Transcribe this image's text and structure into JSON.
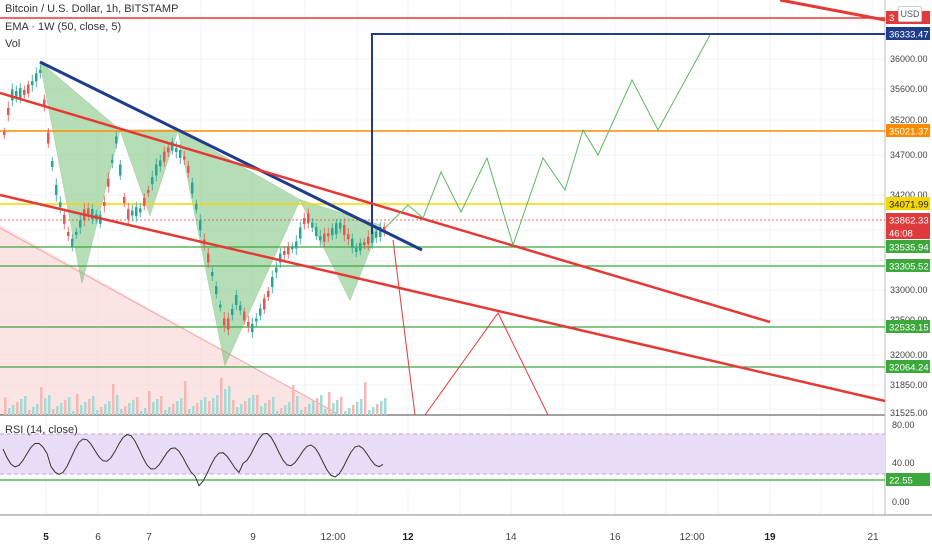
{
  "header": {
    "title": "Bitcoin / U.S. Dollar, 1h, BITSTAMP",
    "ema": "EMA · 1W (50, close, 5)",
    "vol": "Vol",
    "rsi": "RSI (14, close)",
    "currency": "USD"
  },
  "chart_data": {
    "type": "candlestick",
    "price_axis": {
      "ticks": [
        "36000.00",
        "35600.00",
        "35200.00",
        "34700.00",
        "34200.00",
        "33000.00",
        "32500.00",
        "32000.00",
        "31850.00",
        "31525.00"
      ],
      "range": [
        31525,
        36500
      ]
    },
    "rsi_axis": {
      "ticks": [
        "80.00",
        "40.00",
        "0.00"
      ],
      "range": [
        0,
        80
      ]
    },
    "x_ticks": [
      {
        "label": "5",
        "bold": true
      },
      {
        "label": "6",
        "bold": false
      },
      {
        "label": "7",
        "bold": false
      },
      {
        "label": "9",
        "bold": false
      },
      {
        "label": "12:00",
        "bold": false
      },
      {
        "label": "12",
        "bold": true
      },
      {
        "label": "14",
        "bold": false
      },
      {
        "label": "16",
        "bold": false
      },
      {
        "label": "12:00",
        "bold": false
      },
      {
        "label": "19",
        "bold": true
      },
      {
        "label": "21",
        "bold": false
      }
    ],
    "horizontal_levels": [
      {
        "label": "36333.47",
        "color": "#1f3c8a",
        "style": "badge"
      },
      {
        "label": "35021.37",
        "color": "#ff8c00",
        "style": "badge"
      },
      {
        "label": "34071.99",
        "color": "#f5d800",
        "style": "badge"
      },
      {
        "label": "33862.33",
        "color": "#e03b3b",
        "style": "badge"
      },
      {
        "label": "46:08",
        "color": "#e03b3b",
        "style": "badge"
      },
      {
        "label": "33535.94",
        "color": "#3ca83c",
        "style": "badge"
      },
      {
        "label": "33305.52",
        "color": "#3ca83c",
        "style": "badge"
      },
      {
        "label": "32533.15",
        "color": "#3ca83c",
        "style": "badge"
      },
      {
        "label": "32064.24",
        "color": "#3ca83c",
        "style": "badge"
      },
      {
        "label": "22.55",
        "color": "#3ca83c",
        "style": "badge"
      }
    ],
    "top_badge": {
      "label": "3",
      "color": "#e03b3b"
    },
    "grid": true
  },
  "colors": {
    "up": "#26a69a",
    "down": "#ef5350",
    "trend_blue": "#1f3c8a",
    "trend_red": "#e53935",
    "pattern_fill": "#7cc47c",
    "rsi_band": "#e9dcf7",
    "rsi_line": "#333333"
  }
}
